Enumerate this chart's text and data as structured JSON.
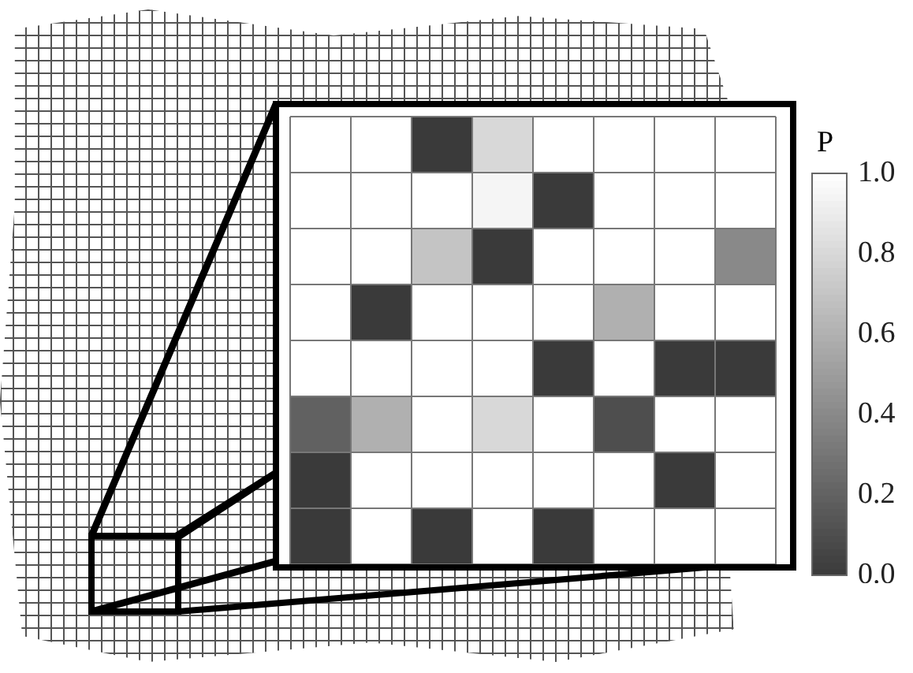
{
  "chart_data": {
    "type": "heatmap",
    "categories": [
      null,
      null,
      null,
      null,
      null,
      null,
      null,
      null
    ],
    "y_categories": [
      null,
      null,
      null,
      null,
      null,
      null,
      null,
      null
    ],
    "cells": [
      [
        1,
        1,
        0,
        0.8,
        1,
        1,
        1,
        1
      ],
      [
        1,
        1,
        1,
        0.95,
        0,
        1,
        1,
        1
      ],
      [
        1,
        1,
        0.7,
        0,
        1,
        1,
        1,
        0.4
      ],
      [
        1,
        0,
        1,
        1,
        1,
        0.6,
        1,
        1
      ],
      [
        1,
        1,
        1,
        1,
        0,
        1,
        0,
        0
      ],
      [
        0.2,
        0.6,
        1,
        0.8,
        1,
        0.1,
        1,
        1
      ],
      [
        0,
        1,
        1,
        1,
        1,
        1,
        0,
        1
      ],
      [
        0,
        1,
        0,
        1,
        0,
        1,
        1,
        1
      ]
    ],
    "clabel": "P",
    "clim": [
      0,
      1
    ],
    "cticks": [
      {
        "value": 0,
        "label": "0.0"
      },
      0.2,
      0.4,
      0.6,
      0.8,
      {
        "value": 1,
        "label": "1.0"
      }
    ]
  }
}
